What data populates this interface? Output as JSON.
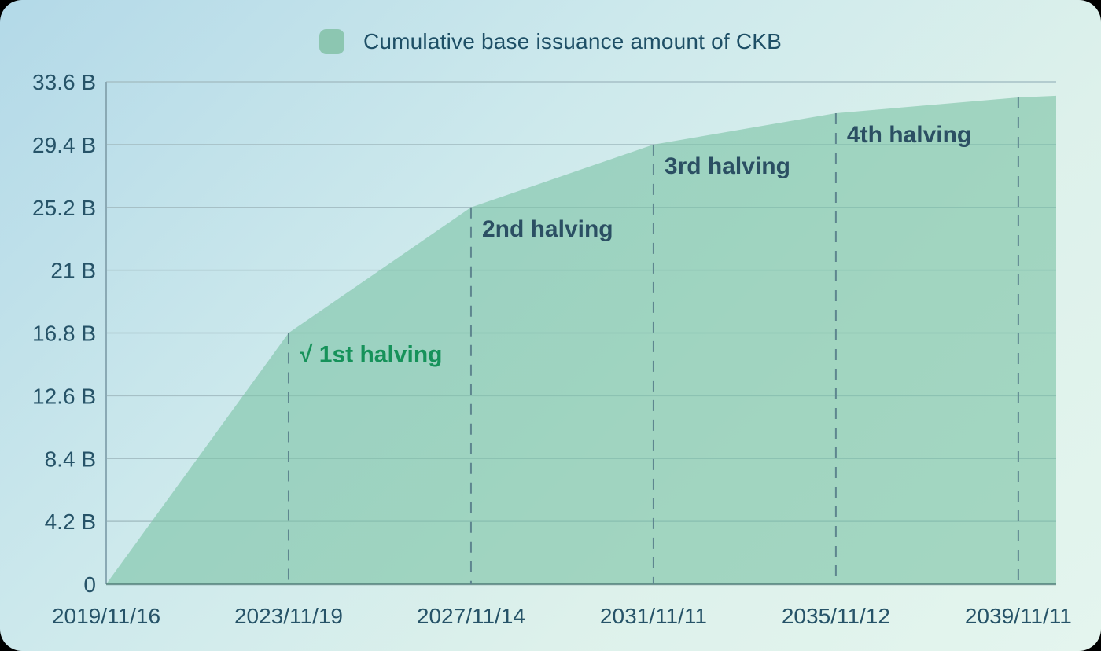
{
  "legend": {
    "label": "Cumulative base issuance amount of CKB"
  },
  "chart_data": {
    "type": "area",
    "title": "Cumulative base issuance amount of CKB",
    "legend_position": "top-center",
    "grid": true,
    "ylim": [
      0,
      33.6
    ],
    "xlim_years": [
      0,
      20.83
    ],
    "y_ticks": [
      {
        "value": 0,
        "label": "0"
      },
      {
        "value": 4.2,
        "label": "4.2 B"
      },
      {
        "value": 8.4,
        "label": "8.4 B"
      },
      {
        "value": 12.6,
        "label": "12.6 B"
      },
      {
        "value": 16.8,
        "label": "16.8 B"
      },
      {
        "value": 21,
        "label": "21 B"
      },
      {
        "value": 25.2,
        "label": "25.2 B"
      },
      {
        "value": 29.4,
        "label": "29.4 B"
      },
      {
        "value": 33.6,
        "label": "33.6 B"
      }
    ],
    "x_ticks": [
      {
        "year": 0,
        "label": "2019/11/16"
      },
      {
        "year": 4,
        "label": "2023/11/19"
      },
      {
        "year": 8,
        "label": "2027/11/14"
      },
      {
        "year": 12,
        "label": "2031/11/11"
      },
      {
        "year": 16,
        "label": "2035/11/12"
      },
      {
        "year": 20,
        "label": "2039/11/11"
      }
    ],
    "series": [
      {
        "name": "Cumulative base issuance amount of CKB",
        "points": [
          [
            0,
            0
          ],
          [
            4,
            16.8
          ],
          [
            8,
            25.2
          ],
          [
            12,
            29.4
          ],
          [
            16,
            31.5
          ],
          [
            20,
            32.55
          ],
          [
            20.83,
            32.66
          ]
        ]
      }
    ],
    "halvings": [
      {
        "year": 4,
        "value": 16.8,
        "label": "√ 1st halving",
        "status": "done"
      },
      {
        "year": 8,
        "value": 25.2,
        "label": "2nd halving",
        "status": "upcoming"
      },
      {
        "year": 12,
        "value": 29.4,
        "label": "3rd halving",
        "status": "upcoming"
      },
      {
        "year": 16,
        "value": 31.5,
        "label": "4th halving",
        "status": "upcoming"
      },
      {
        "year": 20,
        "value": 32.55,
        "label": "",
        "status": "upcoming"
      }
    ],
    "colors": {
      "area_fill": "rgba(125,196,167,0.62)",
      "legend_swatch": "#8cc6b1",
      "grid_line": "#a6c0c6",
      "left_border": "#8aa9b4",
      "bottom_axis": "rgba(60,105,100,0.55)",
      "dashed_line": "#5e868f",
      "tick_text": "#265368",
      "title_text": "#1e4f66",
      "annotation_text": "#2b4f63",
      "annotation_done": "#16925a"
    }
  }
}
